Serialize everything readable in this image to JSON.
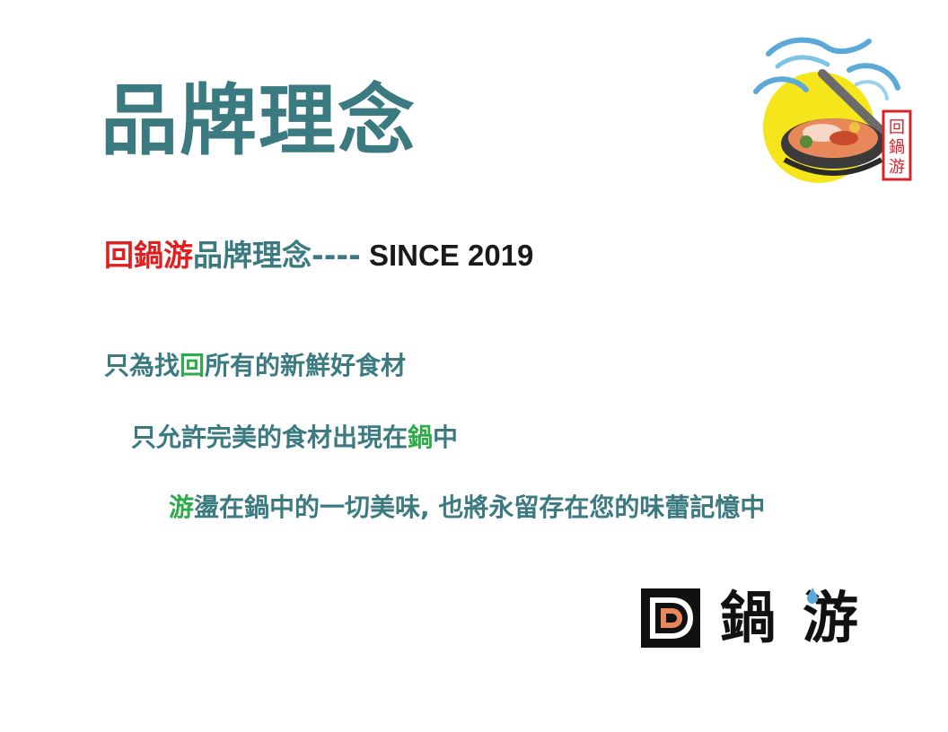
{
  "header": {
    "title": "品牌理念"
  },
  "subtitle": {
    "brand": "回鍋游",
    "phrase": "品牌理念----",
    "since": " SINCE  2019"
  },
  "lines": [
    {
      "pre": "只為找",
      "hl": "回",
      "post": "所有的新鮮好食材"
    },
    {
      "pre": "只允許完美的食材出現在",
      "hl": "鍋",
      "post": "中"
    },
    {
      "pre": "",
      "hl": "游",
      "post": "盪在鍋中的一切美味, 也將永留存在您的味蕾記憶中"
    }
  ],
  "top_logo": {
    "seal_chars": [
      "回",
      "鍋",
      "游"
    ],
    "icon": "hotpot-icon",
    "colors": {
      "sun": "#f5e61c",
      "waves": "#5aa9d8",
      "seal": "#d8232a"
    }
  },
  "bottom_logo": {
    "icon": "d-spiral-icon",
    "char1": "鍋",
    "char2": "游"
  },
  "colors": {
    "teal": "#3a7a80",
    "red": "#e02020",
    "green": "#2eaa4a",
    "black": "#1a1a1a"
  }
}
